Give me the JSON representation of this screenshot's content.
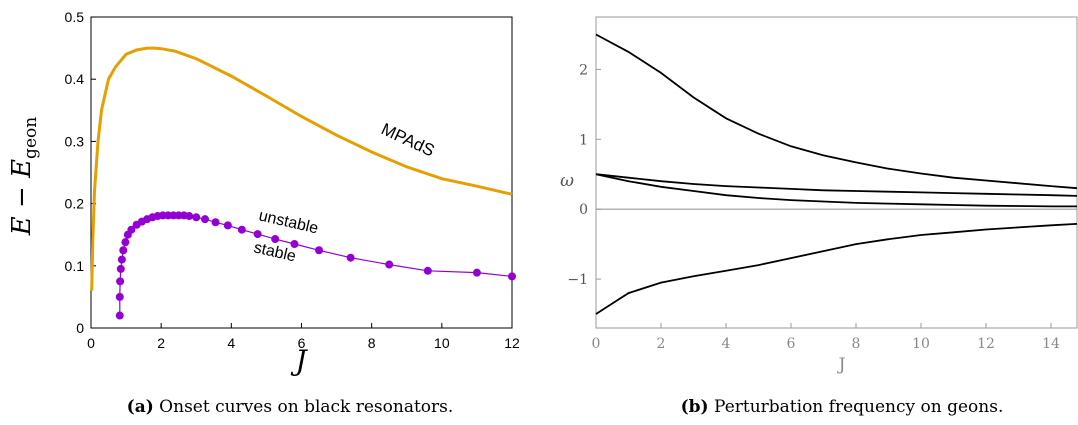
{
  "chart_data": [
    {
      "type": "line",
      "panel": "a",
      "ylabel_main": "E − E",
      "ylabel_sub": "geon",
      "xlabel": "J",
      "xlim": [
        0,
        12
      ],
      "ylim": [
        0,
        0.5
      ],
      "xticks": [
        "0",
        "2",
        "4",
        "6",
        "8",
        "10",
        "12"
      ],
      "yticks": [
        "0",
        "0.1",
        "0.2",
        "0.3",
        "0.4",
        "0.5"
      ],
      "colors": {
        "mpads": "#e69f00",
        "onset": "#9400d3"
      },
      "annotations": {
        "mpads": "MPAdS",
        "unstable": "unstable",
        "stable": "stable"
      },
      "series": [
        {
          "name": "MPAdS",
          "x": [
            0.02,
            0.05,
            0.1,
            0.2,
            0.3,
            0.5,
            0.7,
            1.0,
            1.3,
            1.6,
            1.8,
            2.0,
            2.4,
            3.0,
            4.0,
            5.0,
            6.0,
            7.0,
            8.0,
            9.0,
            10.0,
            11.0,
            12.0
          ],
          "y": [
            0.06,
            0.14,
            0.22,
            0.3,
            0.35,
            0.4,
            0.42,
            0.44,
            0.447,
            0.45,
            0.45,
            0.449,
            0.445,
            0.433,
            0.405,
            0.373,
            0.34,
            0.31,
            0.283,
            0.259,
            0.24,
            0.228,
            0.215
          ]
        },
        {
          "name": "onset",
          "x": [
            0.82,
            0.82,
            0.83,
            0.85,
            0.88,
            0.92,
            0.98,
            1.05,
            1.15,
            1.3,
            1.45,
            1.6,
            1.75,
            1.9,
            2.05,
            2.2,
            2.35,
            2.5,
            2.65,
            2.8,
            3.0,
            3.25,
            3.55,
            3.9,
            4.3,
            4.75,
            5.25,
            5.8,
            6.5,
            7.4,
            8.5,
            9.6,
            11.0,
            12.0
          ],
          "y": [
            0.02,
            0.05,
            0.075,
            0.095,
            0.11,
            0.125,
            0.138,
            0.15,
            0.158,
            0.166,
            0.171,
            0.175,
            0.178,
            0.18,
            0.181,
            0.181,
            0.181,
            0.181,
            0.181,
            0.18,
            0.178,
            0.175,
            0.17,
            0.165,
            0.158,
            0.151,
            0.143,
            0.135,
            0.125,
            0.113,
            0.102,
            0.092,
            0.089,
            0.083
          ]
        }
      ]
    },
    {
      "type": "line",
      "panel": "b",
      "ylabel": "ω",
      "xlabel": "J",
      "xlim": [
        0,
        14.8
      ],
      "ylim": [
        -1.7,
        2.75
      ],
      "xticks": [
        "0",
        "2",
        "4",
        "6",
        "8",
        "10",
        "12",
        "14"
      ],
      "yticks": [
        "−1",
        "0",
        "1",
        "2"
      ],
      "series": [
        {
          "x": [
            0,
            1,
            2,
            3,
            4,
            5,
            6,
            7,
            8,
            9,
            10,
            11,
            12,
            13,
            14,
            14.8
          ],
          "y": [
            2.5,
            2.25,
            1.95,
            1.6,
            1.3,
            1.08,
            0.9,
            0.77,
            0.67,
            0.58,
            0.51,
            0.45,
            0.41,
            0.37,
            0.33,
            0.3
          ]
        },
        {
          "x": [
            0,
            1,
            2,
            3,
            4,
            5,
            6,
            7,
            8,
            9,
            10,
            11,
            12,
            13,
            14,
            14.8
          ],
          "y": [
            0.5,
            0.45,
            0.4,
            0.36,
            0.33,
            0.31,
            0.29,
            0.27,
            0.26,
            0.25,
            0.24,
            0.23,
            0.22,
            0.21,
            0.2,
            0.19
          ]
        },
        {
          "x": [
            0,
            1,
            2,
            3,
            4,
            5,
            6,
            7,
            8,
            9,
            10,
            11,
            12,
            13,
            14,
            14.8
          ],
          "y": [
            0.5,
            0.4,
            0.32,
            0.26,
            0.2,
            0.16,
            0.13,
            0.11,
            0.09,
            0.08,
            0.07,
            0.06,
            0.05,
            0.045,
            0.04,
            0.04
          ]
        },
        {
          "x": [
            0,
            0.5,
            1,
            2,
            3,
            4,
            5,
            6,
            7,
            8,
            9,
            10,
            11,
            12,
            13,
            14,
            14.8
          ],
          "y": [
            -1.5,
            -1.35,
            -1.2,
            -1.05,
            -0.96,
            -0.88,
            -0.8,
            -0.7,
            -0.6,
            -0.5,
            -0.43,
            -0.37,
            -0.33,
            -0.29,
            -0.26,
            -0.23,
            -0.21
          ]
        }
      ]
    }
  ],
  "captions": {
    "a": {
      "label": "(a)",
      "text": " Onset curves on black resonators."
    },
    "b": {
      "label": "(b)",
      "text": " Perturbation frequency on geons."
    }
  }
}
